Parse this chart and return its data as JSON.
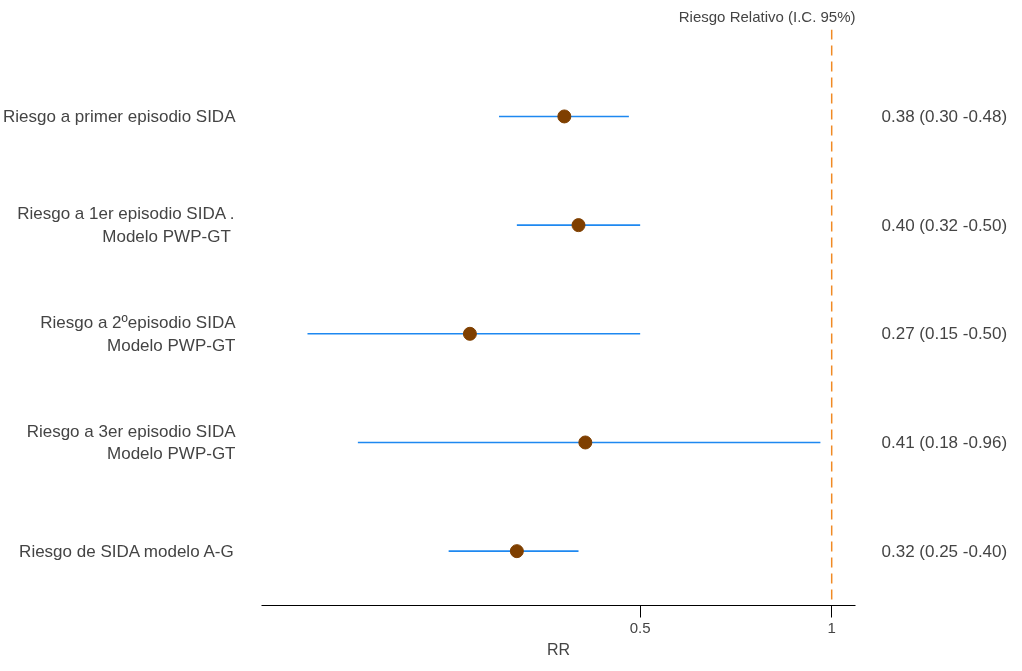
{
  "chart_data": {
    "type": "scatter",
    "orientation": "horizontal",
    "log": "x",
    "categories": [
      "Riesgo a primer episodio SIDA",
      "Riesgo a 1er episodio SIDA .\nModelo  PWP-GT",
      "Riesgo a 2ºepisodio SIDA\nModelo PWP-GT",
      "Riesgo a 3er episodio SIDA\nModelo PWP-GT",
      "Riesgo de SIDA modelo A-G"
    ],
    "color": "#7f3f00",
    "values": [
      0.38,
      0.4,
      0.27,
      0.41,
      0.32
    ],
    "errors": [
      [
        0.3,
        0.48
      ],
      [
        0.32,
        0.5
      ],
      [
        0.15,
        0.5
      ],
      [
        0.18,
        0.96
      ],
      [
        0.25,
        0.4
      ]
    ],
    "value_labels": [
      "0.38 (0.30 -0.48)",
      "0.40 (0.32 -0.50)",
      "0.27 (0.15 -0.50)",
      "0.41 (0.18 -0.96)",
      "0.32 (0.25 -0.40)"
    ],
    "xlim": [
      0.127,
      1.09
    ],
    "xticks": [
      0.5,
      1
    ],
    "xlabel": "RR",
    "marker": "circle",
    "grid": false,
    "ref_lines": [
      {
        "axis": "x",
        "value": 1,
        "color": "#f08a24",
        "line_style": "dashed"
      }
    ],
    "annotations": [
      "Riesgo Relativo (I.C. 95%)"
    ]
  }
}
